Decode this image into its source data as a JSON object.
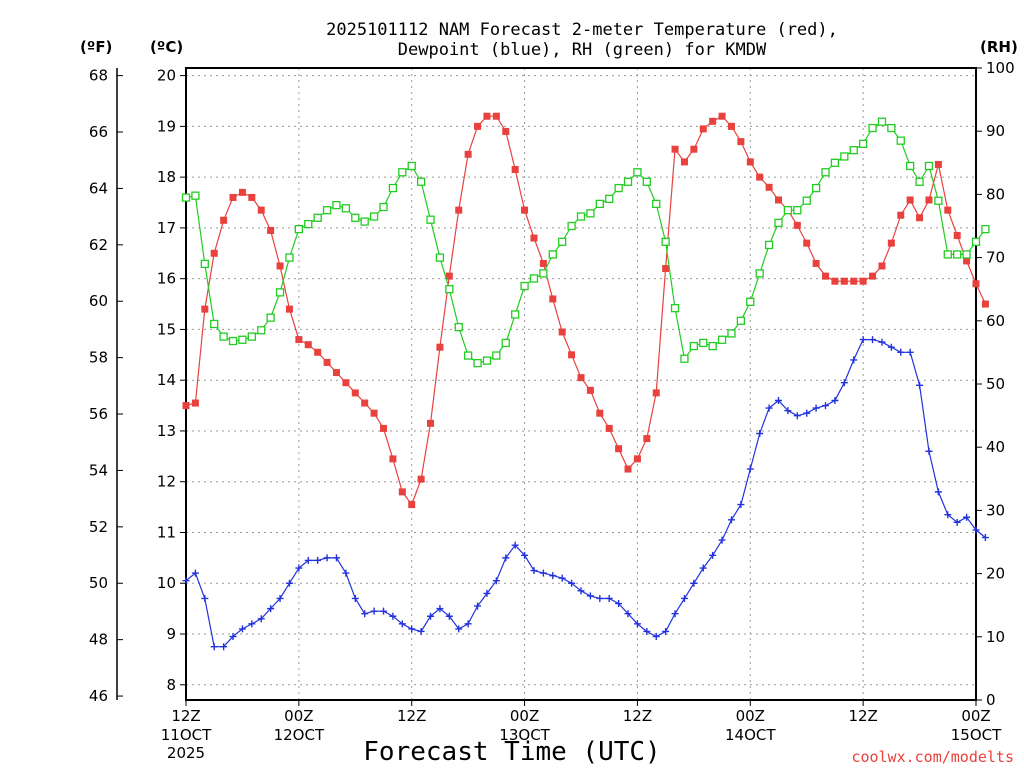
{
  "chart_data": {
    "type": "line",
    "title": "2025101112 NAM Forecast 2-meter Temperature (red),",
    "subtitle": "Dewpoint (blue), RH (green) for KMDW",
    "xlabel": "Forecast Time (UTC)",
    "units": {
      "fahrenheit": "(ºF)",
      "celsius": "(ºC)",
      "rh": "(RH)"
    },
    "credit": "coolwx.com/modelts",
    "x_range_hours": [
      0,
      84
    ],
    "ylim_celsius": [
      7.7,
      20.15
    ],
    "ylim_rh": [
      0,
      100
    ],
    "celsius_ticks": [
      "8",
      "9",
      "10",
      "11",
      "12",
      "13",
      "14",
      "15",
      "16",
      "17",
      "18",
      "19",
      "20"
    ],
    "fahrenheit_ticks": [
      "46",
      "48",
      "50",
      "52",
      "54",
      "56",
      "58",
      "60",
      "62",
      "64",
      "66",
      "68"
    ],
    "rh_ticks": [
      "0",
      "10",
      "20",
      "30",
      "40",
      "50",
      "60",
      "70",
      "80",
      "90",
      "100"
    ],
    "x_ticks": [
      {
        "line1": "12Z",
        "line2": "11OCT",
        "line3": "2025"
      },
      {
        "line1": "00Z",
        "line2": "12OCT",
        "line3": ""
      },
      {
        "line1": "12Z",
        "line2": "",
        "line3": ""
      },
      {
        "line1": "00Z",
        "line2": "13OCT",
        "line3": ""
      },
      {
        "line1": "12Z",
        "line2": "",
        "line3": ""
      },
      {
        "line1": "00Z",
        "line2": "14OCT",
        "line3": ""
      },
      {
        "line1": "12Z",
        "line2": "",
        "line3": ""
      },
      {
        "line1": "00Z",
        "line2": "15OCT",
        "line3": ""
      }
    ],
    "colors": {
      "temperature": "#e8413e",
      "dewpoint": "#2233dd",
      "rh": "#22cc22"
    },
    "series": [
      {
        "name": "Temperature",
        "unit": "celsius",
        "values": [
          13.5,
          13.55,
          15.4,
          16.5,
          17.15,
          17.6,
          17.7,
          17.6,
          17.35,
          16.95,
          16.25,
          15.4,
          14.8,
          14.7,
          14.55,
          14.35,
          14.15,
          13.95,
          13.75,
          13.55,
          13.35,
          13.05,
          12.45,
          11.8,
          11.55,
          12.05,
          13.15,
          14.65,
          16.05,
          17.35,
          18.45,
          19.0,
          19.2,
          19.2,
          18.9,
          18.15,
          17.35,
          16.8,
          16.3,
          15.6,
          14.95,
          14.5,
          14.05,
          13.8,
          13.35,
          13.05,
          12.65,
          12.25,
          12.45,
          12.85,
          13.75,
          16.2,
          18.55,
          18.3,
          18.55,
          18.95,
          19.1,
          19.2,
          19.0,
          18.7,
          18.3,
          18.0,
          17.8,
          17.55,
          17.35,
          17.05,
          16.7,
          16.3,
          16.05,
          15.95,
          15.95,
          15.95,
          15.95,
          16.05,
          16.25,
          16.7,
          17.25,
          17.55,
          17.2,
          17.55,
          18.25,
          17.35,
          16.85,
          16.35,
          15.9,
          15.5
        ]
      },
      {
        "name": "Dewpoint",
        "unit": "celsius",
        "values": [
          10.05,
          10.2,
          9.7,
          8.75,
          8.75,
          8.95,
          9.1,
          9.2,
          9.3,
          9.5,
          9.7,
          10.0,
          10.3,
          10.45,
          10.45,
          10.5,
          10.5,
          10.2,
          9.7,
          9.4,
          9.45,
          9.45,
          9.35,
          9.2,
          9.1,
          9.05,
          9.35,
          9.5,
          9.35,
          9.1,
          9.2,
          9.55,
          9.8,
          10.05,
          10.5,
          10.75,
          10.55,
          10.25,
          10.2,
          10.15,
          10.1,
          10.0,
          9.85,
          9.75,
          9.7,
          9.7,
          9.6,
          9.4,
          9.2,
          9.05,
          8.95,
          9.05,
          9.4,
          9.7,
          10.0,
          10.3,
          10.55,
          10.85,
          11.25,
          11.55,
          12.25,
          12.95,
          13.45,
          13.6,
          13.4,
          13.3,
          13.35,
          13.45,
          13.5,
          13.6,
          13.95,
          14.4,
          14.8,
          14.8,
          14.75,
          14.65,
          14.55,
          14.55,
          13.9,
          12.6,
          11.8,
          11.35,
          11.2,
          11.3,
          11.05,
          10.9
        ]
      },
      {
        "name": "RH",
        "unit": "rh",
        "values": [
          79.5,
          79.8,
          69.0,
          59.5,
          57.5,
          56.8,
          57.0,
          57.5,
          58.5,
          60.5,
          64.5,
          70.0,
          74.5,
          75.3,
          76.3,
          77.5,
          78.3,
          77.8,
          76.3,
          75.7,
          76.5,
          78.0,
          81.0,
          83.5,
          84.5,
          82.0,
          76.0,
          70.0,
          65.0,
          59.0,
          54.5,
          53.3,
          53.7,
          54.5,
          56.5,
          61.0,
          65.5,
          66.7,
          67.5,
          70.5,
          72.5,
          75.0,
          76.5,
          77.0,
          78.5,
          79.3,
          81.0,
          82.0,
          83.5,
          82.0,
          78.5,
          72.5,
          62.0,
          54.0,
          56.0,
          56.5,
          56.0,
          57.0,
          58.0,
          60.0,
          63.0,
          67.5,
          72.0,
          75.5,
          77.5,
          77.5,
          79.0,
          81.0,
          83.5,
          85.0,
          86.0,
          87.0,
          88.0,
          90.5,
          91.5,
          90.5,
          88.5,
          84.5,
          82.0,
          84.5,
          79.0,
          70.5,
          70.5,
          70.5,
          72.5,
          74.5
        ]
      }
    ]
  }
}
